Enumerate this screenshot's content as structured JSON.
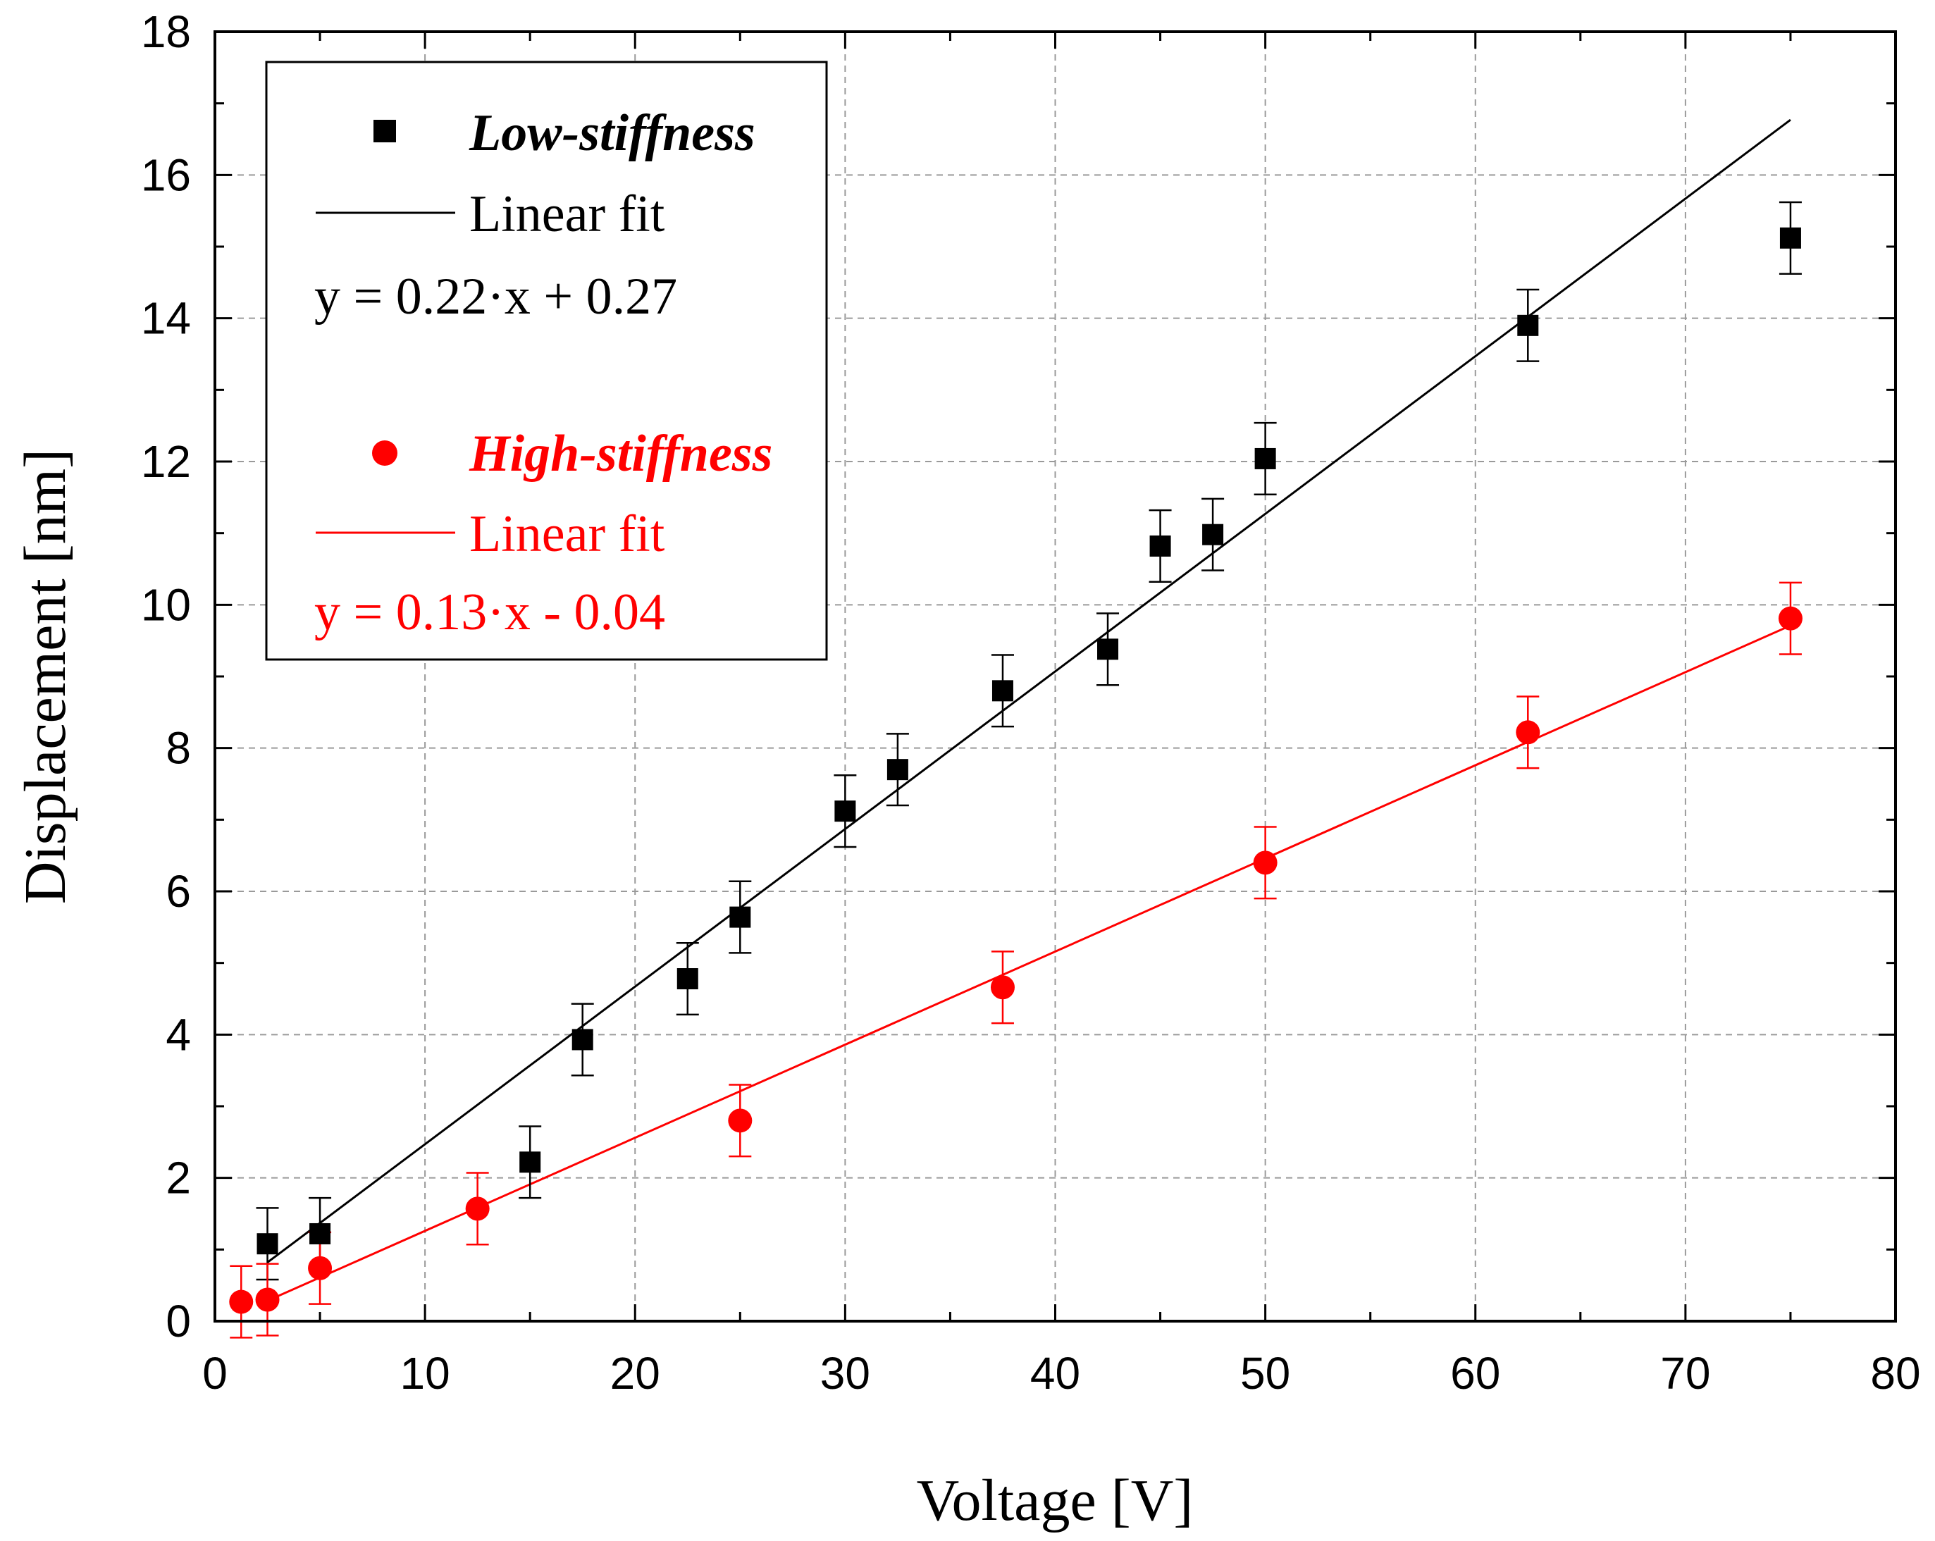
{
  "chart_data": {
    "type": "scatter",
    "title": "",
    "xlabel": "Voltage [V]",
    "ylabel": "Displacement [nm]",
    "xlim": [
      0,
      80
    ],
    "ylim": [
      0,
      18
    ],
    "xticks": [
      "0",
      "10",
      "20",
      "30",
      "40",
      "50",
      "60",
      "70",
      "80"
    ],
    "yticks": [
      "0",
      "2",
      "4",
      "6",
      "8",
      "10",
      "12",
      "14",
      "16",
      "18"
    ],
    "grid": true,
    "legend_position": "top-left",
    "series": [
      {
        "name": "Low-stiffness",
        "marker": "square",
        "color": "#000000",
        "x": [
          2.5,
          5,
          15,
          17.5,
          22.5,
          25,
          30,
          32.5,
          37.5,
          42.5,
          45,
          47.5,
          50,
          62.5,
          75
        ],
        "y": [
          1.08,
          1.22,
          2.22,
          3.93,
          4.78,
          5.64,
          7.12,
          7.7,
          8.8,
          9.38,
          10.82,
          10.98,
          12.04,
          13.9,
          15.12
        ],
        "error": [
          0.5,
          0.5,
          0.5,
          0.5,
          0.5,
          0.5,
          0.5,
          0.5,
          0.5,
          0.5,
          0.5,
          0.5,
          0.5,
          0.5,
          0.5
        ],
        "fit_label": "Linear fit",
        "fit_equation": "y = 0.22·x + 0.27",
        "fit_x": [
          2.5,
          75
        ],
        "fit_slope": 0.22,
        "fit_intercept": 0.27
      },
      {
        "name": "High-stiffness",
        "marker": "circle",
        "color": "#ff0000",
        "x": [
          1.25,
          2.5,
          5,
          12.5,
          25,
          37.5,
          50,
          62.5,
          75
        ],
        "y": [
          0.27,
          0.3,
          0.74,
          1.57,
          2.8,
          4.66,
          6.4,
          8.22,
          9.81
        ],
        "error": [
          0.5,
          0.5,
          0.5,
          0.5,
          0.5,
          0.5,
          0.5,
          0.5,
          0.5
        ],
        "fit_label": "Linear fit",
        "fit_equation": "y = 0.13·x - 0.04",
        "fit_x": [
          2.5,
          75
        ],
        "fit_slope": 0.13,
        "fit_intercept": -0.04
      }
    ]
  }
}
